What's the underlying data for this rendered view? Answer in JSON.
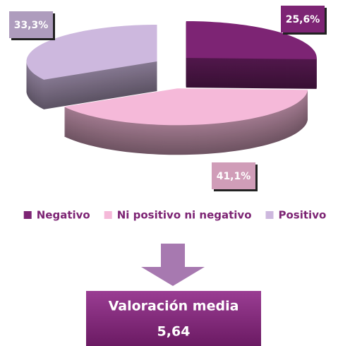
{
  "chart_data": {
    "type": "pie",
    "categories": [
      "Negativo",
      "Ni positivo ni negativo",
      "Positivo"
    ],
    "values": [
      25.6,
      41.1,
      33.3
    ],
    "value_labels": [
      "25,6%",
      "41,1%",
      "33,3%"
    ],
    "colors": [
      "#7d2474",
      "#f5b9d9",
      "#cdb8de"
    ],
    "legend": "bottom",
    "annotation": "Valoración media",
    "annotation_value": "5,64"
  }
}
